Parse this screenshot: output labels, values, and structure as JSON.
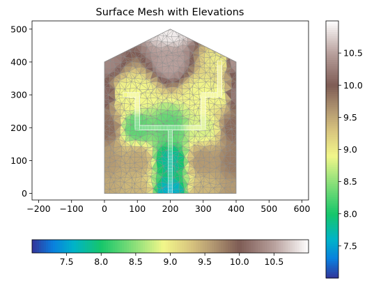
{
  "chart_data": {
    "type": "heatmap",
    "title": "Surface Mesh with Elevations",
    "xlabel": "",
    "ylabel": "",
    "xlim": [
      -220,
      620
    ],
    "ylim": [
      -20,
      525
    ],
    "xticks": [
      -200,
      -100,
      0,
      100,
      200,
      300,
      400,
      500,
      600
    ],
    "yticks": [
      0,
      100,
      200,
      300,
      400,
      500
    ],
    "grid": false,
    "domain_outline": [
      [
        0,
        0
      ],
      [
        400,
        0
      ],
      [
        400,
        400
      ],
      [
        200,
        500
      ],
      [
        0,
        400
      ]
    ],
    "channel_path": [
      [
        200,
        0
      ],
      [
        200,
        200
      ],
      [
        100,
        200
      ],
      [
        100,
        300
      ],
      [
        60,
        300
      ]
    ],
    "channel_path_right": [
      [
        200,
        200
      ],
      [
        300,
        200
      ],
      [
        300,
        300
      ],
      [
        350,
        300
      ],
      [
        350,
        400
      ]
    ],
    "elevation_field": {
      "min": 7.0,
      "max": 11.0,
      "mesh_edge_color": "#8a8a8a",
      "samples": [
        {
          "x": 0,
          "y": 0,
          "z": 9.5
        },
        {
          "x": 100,
          "y": 0,
          "z": 9.4
        },
        {
          "x": 200,
          "y": 0,
          "z": 7.6
        },
        {
          "x": 300,
          "y": 0,
          "z": 9.4
        },
        {
          "x": 400,
          "y": 0,
          "z": 9.6
        },
        {
          "x": 0,
          "y": 100,
          "z": 9.6
        },
        {
          "x": 100,
          "y": 100,
          "z": 9.5
        },
        {
          "x": 200,
          "y": 100,
          "z": 7.8
        },
        {
          "x": 300,
          "y": 100,
          "z": 9.6
        },
        {
          "x": 400,
          "y": 100,
          "z": 9.8
        },
        {
          "x": 0,
          "y": 200,
          "z": 9.9
        },
        {
          "x": 100,
          "y": 200,
          "z": 8.3
        },
        {
          "x": 200,
          "y": 200,
          "z": 8.3
        },
        {
          "x": 300,
          "y": 200,
          "z": 8.8
        },
        {
          "x": 400,
          "y": 200,
          "z": 9.9
        },
        {
          "x": 0,
          "y": 300,
          "z": 10.1
        },
        {
          "x": 60,
          "y": 300,
          "z": 8.9
        },
        {
          "x": 100,
          "y": 300,
          "z": 8.9
        },
        {
          "x": 300,
          "y": 300,
          "z": 8.9
        },
        {
          "x": 350,
          "y": 300,
          "z": 8.9
        },
        {
          "x": 400,
          "y": 300,
          "z": 10.2
        },
        {
          "x": 0,
          "y": 400,
          "z": 10.3
        },
        {
          "x": 200,
          "y": 400,
          "z": 10.5
        },
        {
          "x": 350,
          "y": 400,
          "z": 9.0
        },
        {
          "x": 400,
          "y": 400,
          "z": 10.4
        },
        {
          "x": 200,
          "y": 500,
          "z": 10.9
        }
      ]
    },
    "colorbars": [
      {
        "orientation": "vertical",
        "range": [
          7.0,
          11.0
        ],
        "ticks": [
          "7.5",
          "8.0",
          "8.5",
          "9.0",
          "9.5",
          "10.0",
          "10.5"
        ],
        "tick_values": [
          7.5,
          8.0,
          8.5,
          9.0,
          9.5,
          10.0,
          10.5
        ]
      },
      {
        "orientation": "horizontal",
        "range": [
          7.0,
          11.0
        ],
        "ticks": [
          "7.5",
          "8.0",
          "8.5",
          "9.0",
          "9.5",
          "10.0",
          "10.5"
        ],
        "tick_values": [
          7.5,
          8.0,
          8.5,
          9.0,
          9.5,
          10.0,
          10.5
        ]
      }
    ],
    "colormap_stops": [
      {
        "v": 7.0,
        "color": "#333399"
      },
      {
        "v": 7.3,
        "color": "#0a7fde"
      },
      {
        "v": 7.6,
        "color": "#00b3c9"
      },
      {
        "v": 8.0,
        "color": "#16c66a"
      },
      {
        "v": 8.5,
        "color": "#8ee07a"
      },
      {
        "v": 8.9,
        "color": "#f2f78a"
      },
      {
        "v": 9.3,
        "color": "#d8c47e"
      },
      {
        "v": 9.6,
        "color": "#b49a72"
      },
      {
        "v": 10.0,
        "color": "#7e5c55"
      },
      {
        "v": 10.5,
        "color": "#b8a09c"
      },
      {
        "v": 11.0,
        "color": "#ffffff"
      }
    ]
  }
}
